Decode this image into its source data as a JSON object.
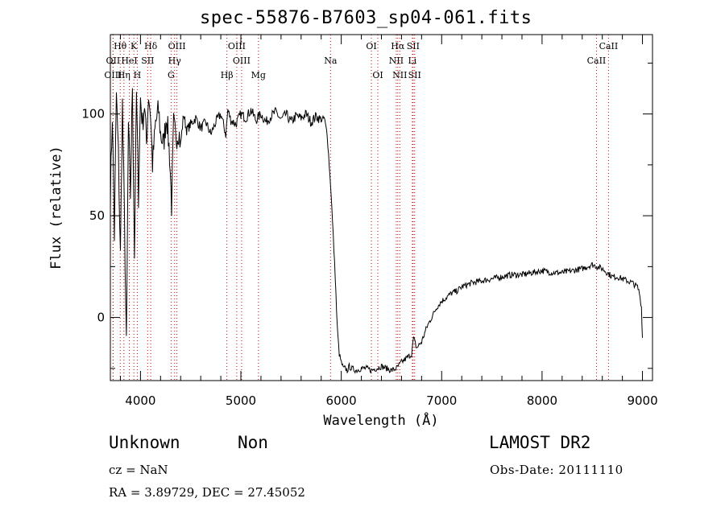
{
  "header": {
    "title": "spec-55876-B7603_sp04-061.fits"
  },
  "info": {
    "class": "Unknown",
    "subclass": "Non",
    "survey": "LAMOST DR2",
    "cz": "cz = NaN",
    "obs_date": "Obs-Date: 20111110",
    "ra_dec": "RA =    3.89729, DEC =   27.45052"
  },
  "chart_data": {
    "type": "line",
    "title": "spec-55876-B7603_sp04-061.fits",
    "xlabel": "Wavelength (Å)",
    "ylabel": "Flux (relative)",
    "xlim": [
      3700,
      9100
    ],
    "ylim": [
      -31,
      139
    ],
    "x_ticks": [
      4000,
      5000,
      6000,
      7000,
      8000,
      9000
    ],
    "x_tick_labels": [
      "4000",
      "5000",
      "6000",
      "7000",
      "8000",
      "9000"
    ],
    "y_ticks": [
      0,
      50,
      100
    ],
    "y_tick_labels": [
      "0",
      "50",
      "100"
    ],
    "grid": false,
    "line_color": "#000000",
    "marker_line_color": "#cc0000",
    "spectral_lines": [
      {
        "label": "Hθ",
        "wavelength": 3798,
        "row": 1
      },
      {
        "label": "K",
        "wavelength": 3934,
        "row": 1
      },
      {
        "label": "Hδ",
        "wavelength": 4102,
        "row": 1
      },
      {
        "label": "OIII",
        "wavelength": 4363,
        "row": 1
      },
      {
        "label": "OIII",
        "wavelength": 4959,
        "row": 1
      },
      {
        "label": "OI",
        "wavelength": 6300,
        "row": 1
      },
      {
        "label": "Hα",
        "wavelength": 6563,
        "row": 1
      },
      {
        "label": "SII",
        "wavelength": 6716,
        "row": 1
      },
      {
        "label": "CaII",
        "wavelength": 8662,
        "row": 1
      },
      {
        "label": "OII",
        "wavelength": 3727,
        "row": 2
      },
      {
        "label": "HeI",
        "wavelength": 3889,
        "row": 2
      },
      {
        "label": "SII",
        "wavelength": 4072,
        "row": 2
      },
      {
        "label": "Hγ",
        "wavelength": 4340,
        "row": 2
      },
      {
        "label": "OIII",
        "wavelength": 5007,
        "row": 2
      },
      {
        "label": "Na",
        "wavelength": 5893,
        "row": 2
      },
      {
        "label": "NII",
        "wavelength": 6548,
        "row": 2
      },
      {
        "label": "Li",
        "wavelength": 6708,
        "row": 2
      },
      {
        "label": "CaII",
        "wavelength": 8542,
        "row": 2
      },
      {
        "label": "OIII",
        "wavelength": 3727,
        "row": 3
      },
      {
        "label": "Hη",
        "wavelength": 3835,
        "row": 3
      },
      {
        "label": "H",
        "wavelength": 3968,
        "row": 3
      },
      {
        "label": "G",
        "wavelength": 4305,
        "row": 3
      },
      {
        "label": "Hβ",
        "wavelength": 4861,
        "row": 3
      },
      {
        "label": "Mg",
        "wavelength": 5175,
        "row": 3
      },
      {
        "label": "OI",
        "wavelength": 6364,
        "row": 3
      },
      {
        "label": "NII",
        "wavelength": 6583,
        "row": 3
      },
      {
        "label": "SII",
        "wavelength": 6731,
        "row": 3
      }
    ],
    "series": [
      {
        "x": [
          3700,
          3720,
          3740,
          3760,
          3780,
          3800,
          3820,
          3840,
          3860,
          3880,
          3900,
          3920,
          3940,
          3960,
          3980,
          4000,
          4020,
          4040,
          4060,
          4080,
          4100,
          4120,
          4150,
          4180,
          4200,
          4230,
          4260,
          4290,
          4310,
          4330,
          4350,
          4380,
          4400,
          4430,
          4460,
          4500,
          4550,
          4600,
          4650,
          4700,
          4750,
          4800,
          4850,
          4870,
          4900,
          4950,
          5000,
          5050,
          5100,
          5150,
          5200,
          5250,
          5300,
          5350,
          5400,
          5450,
          5500,
          5550,
          5600,
          5650,
          5700,
          5750,
          5800,
          5830,
          5860,
          5880,
          5900,
          5920,
          5940,
          5960,
          5980,
          6000,
          6020,
          6040,
          6060,
          6080,
          6100,
          6150,
          6200,
          6250,
          6300,
          6350,
          6400,
          6450,
          6500,
          6550,
          6600,
          6650,
          6700,
          6720,
          6750,
          6800,
          6850,
          6900,
          6950,
          7000,
          7050,
          7100,
          7150,
          7200,
          7300,
          7400,
          7500,
          7600,
          7700,
          7800,
          7900,
          8000,
          8100,
          8200,
          8300,
          8400,
          8450,
          8500,
          8550,
          8600,
          8650,
          8700,
          8750,
          8800,
          8850,
          8900,
          8950,
          8970,
          8990,
          9000
        ],
        "y": [
          60,
          100,
          40,
          110,
          80,
          30,
          105,
          50,
          -15,
          95,
          60,
          115,
          30,
          110,
          60,
          108,
          95,
          105,
          85,
          110,
          100,
          75,
          95,
          102,
          90,
          85,
          100,
          80,
          55,
          95,
          88,
          92,
          85,
          100,
          92,
          95,
          98,
          93,
          96,
          90,
          96,
          100,
          90,
          102,
          97,
          95,
          100,
          98,
          102,
          97,
          100,
          96,
          99,
          101,
          97,
          100,
          96,
          99,
          98,
          100,
          96,
          99,
          97,
          98,
          90,
          75,
          60,
          40,
          20,
          -5,
          -18,
          -22,
          -25,
          -25,
          -26,
          -24,
          -25,
          -26,
          -25,
          -25,
          -26,
          -25,
          -24,
          -25,
          -26,
          -25,
          -22,
          -20,
          -18,
          -10,
          -15,
          -12,
          -5,
          0,
          5,
          8,
          10,
          12,
          13,
          15,
          17,
          18,
          19,
          20,
          21,
          21,
          22,
          23,
          22,
          22,
          23,
          24,
          25,
          26,
          25,
          24,
          22,
          20,
          20,
          19,
          18,
          17,
          15,
          12,
          5,
          -10
        ]
      }
    ]
  }
}
